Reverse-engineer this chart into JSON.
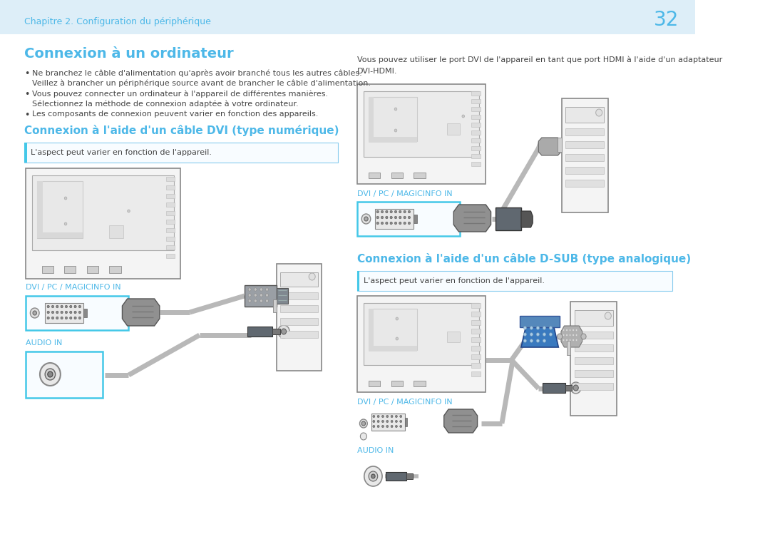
{
  "page_bg": "#ffffff",
  "header_bg": "#ddeef8",
  "header_text": "Chapitre 2. Configuration du périphérique",
  "header_text_color": "#4db8e8",
  "page_number": "32",
  "page_number_color": "#4db8e8",
  "title1": "Connexion à un ordinateur",
  "title1_color": "#4db8e8",
  "body_color": "#444444",
  "label_color": "#4db8e8",
  "cyan_border": "#44c8e8",
  "note_bg": "#f8fcff",
  "note_border": "#88ccee",
  "bullet1a": "Ne branchez le câble d'alimentation qu'après avoir branché tous les autres câbles.",
  "bullet1b": "Veillez à brancher un périphérique source avant de brancher le câble d'alimentation.",
  "bullet2a": "Vous pouvez connecter un ordinateur à l'appareil de différentes manières.",
  "bullet2b": "Sélectionnez la méthode de connexion adaptée à votre ordinateur.",
  "bullet3": "Les composants de connexion peuvent varier en fonction des appareils.",
  "section1_title": "Connexion à l'aide d'un câble DVI (type numérique)",
  "section1_color": "#4db8e8",
  "note1": "L'aspect peut varier en fonction de l'appareil.",
  "label_dvi1": "DVI / PC / MAGICINFO IN",
  "label_audio1": "AUDIO IN",
  "right_text1": "Vous pouvez utiliser le port DVI de l'appareil en tant que port HDMI à l'aide d'un adaptateur",
  "right_text2": "DVI-HDMI.",
  "label_dvi2": "DVI / PC / MAGICINFO IN",
  "section2_title": "Connexion à l'aide d'un câble D-SUB (type analogique)",
  "section2_color": "#4db8e8",
  "note2": "L'aspect peut varier en fonction de l'appareil.",
  "label_dvi3": "DVI / PC / MAGICINFO IN",
  "label_audio2": "AUDIO IN",
  "cable_color": "#b8b8b8",
  "connector_color": "#909090",
  "connector_dark": "#606870",
  "pc_color": "#f4f4f4",
  "pc_border": "#888888",
  "monitor_color": "#f4f4f4",
  "monitor_border": "#888888",
  "vga_blue": "#3a7abf",
  "vga_blue_light": "#5599dd",
  "body_fontsize": 8.0,
  "title_fontsize": 14,
  "section_fontsize": 11,
  "header_fontsize": 9,
  "label_fontsize": 8
}
